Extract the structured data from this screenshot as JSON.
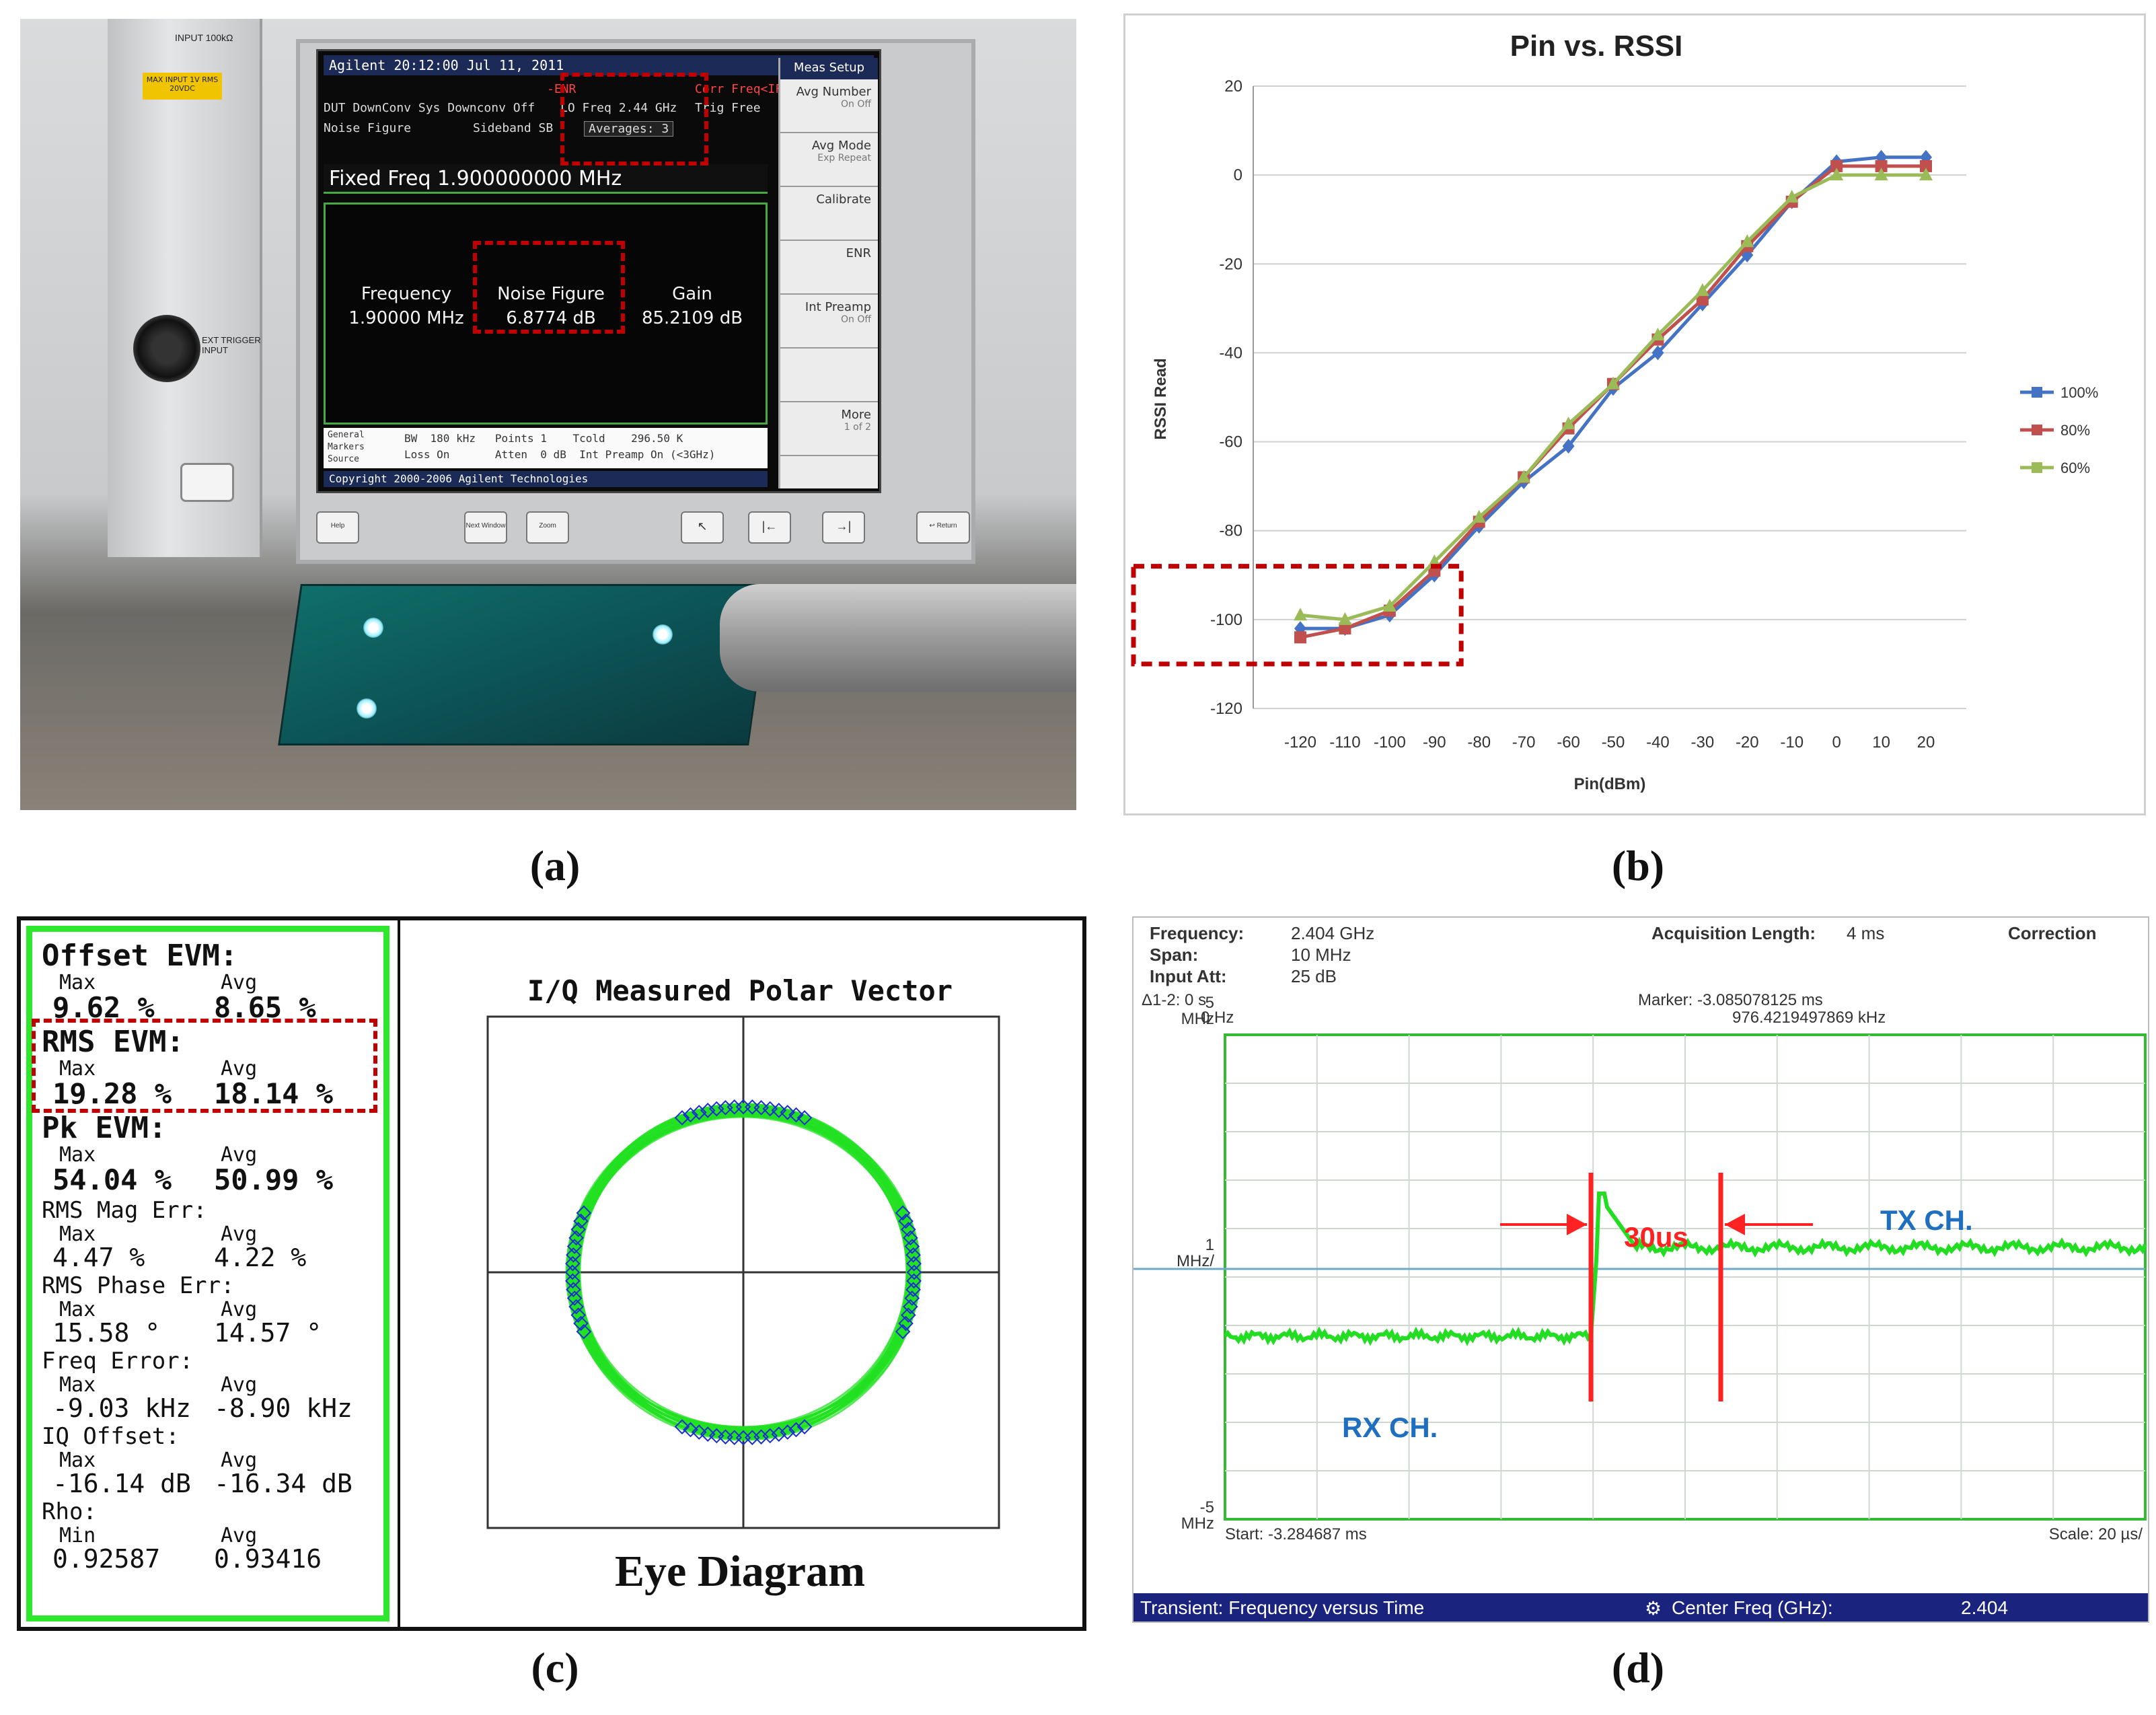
{
  "captions": {
    "a": "(a)",
    "b": "(b)",
    "c": "(c)",
    "d": "(d)"
  },
  "panel_a": {
    "instrument_warning": "MAX INPUT 1V RMS 20VDC",
    "input_label": "INPUT 100kΩ",
    "ext_trigger": "EXT TRIGGER INPUT",
    "screen_header": "Agilent 20:12:00  Jul 11, 2011",
    "corr_label": "Corr  Freq<IF DC",
    "enr_label": "-ENR",
    "dut_line": "DUT  DownConv  Sys Downconv  Off",
    "lo_freq": "LO Freq  2.44 GHz",
    "trig": "Trig  Free",
    "nf_line": "Noise Figure",
    "sideband": "Sideband  SB",
    "averages": "Averages: 3",
    "fixed_freq": "Fixed Freq 1.900000000 MHz",
    "meas": [
      {
        "label": "Frequency",
        "value": "1.90000 MHz"
      },
      {
        "label": "Noise Figure",
        "value": "6.8774 dB"
      },
      {
        "label": "Gain",
        "value": "85.2109 dB"
      }
    ],
    "bottom_tabs": [
      "General",
      "Markers",
      "Source"
    ],
    "bottom_line1": "BW  180 kHz   Points 1    Tcold    296.50 K",
    "bottom_line2": "Loss On       Atten  0 dB  Int Preamp On (<3GHz)",
    "copyright": "Copyright 2000-2006 Agilent Technologies",
    "softkey_header": "Meas Setup",
    "softkeys": [
      {
        "label": "Avg Number",
        "sub": "On    Off"
      },
      {
        "label": "Avg Mode",
        "sub": "Exp   Repeat"
      },
      {
        "label": "Calibrate",
        "sub": ""
      },
      {
        "label": "ENR",
        "sub": ""
      },
      {
        "label": "Int Preamp",
        "sub": "On    Off"
      },
      {
        "label": "",
        "sub": ""
      },
      {
        "label": "More",
        "sub": "1 of 2"
      }
    ],
    "hw_keys": [
      "Help",
      "Next Window",
      "Zoom",
      "↖",
      "|←",
      "→|",
      "↩ Return"
    ]
  },
  "chart_data": {
    "type": "line",
    "title": "Pin vs. RSSI",
    "xlabel": "Pin(dBm)",
    "ylabel": "RSSI Read",
    "x": [
      -120,
      -110,
      -100,
      -90,
      -80,
      -70,
      -60,
      -50,
      -40,
      -30,
      -20,
      -10,
      0,
      10,
      20
    ],
    "xticks": [
      "-120",
      "-110",
      "-100",
      "-90",
      "-80",
      "-70",
      "-60",
      "-50",
      "-40",
      "-30",
      "-20",
      "-10",
      "0",
      "10",
      "20"
    ],
    "ylim": [
      -120,
      20
    ],
    "yticks": [
      "20",
      "0",
      "-20",
      "-40",
      "-60",
      "-80",
      "-100",
      "-120"
    ],
    "grid": true,
    "legend": "right",
    "series": [
      {
        "name": "100%",
        "color": "#4472c4",
        "marker": "diamond",
        "values": [
          -102,
          -102,
          -99,
          -90,
          -79,
          -69,
          -61,
          -48,
          -40,
          -29,
          -18,
          -6,
          3,
          4,
          4
        ]
      },
      {
        "name": "80%",
        "color": "#c0504d",
        "marker": "square",
        "values": [
          -104,
          -102,
          -98,
          -89,
          -78,
          -68,
          -57,
          -47,
          -37,
          -28,
          -16,
          -6,
          2,
          2,
          2
        ]
      },
      {
        "name": "60%",
        "color": "#9bbb59",
        "marker": "triangle",
        "values": [
          -99,
          -100,
          -97,
          -87,
          -77,
          -68,
          -56,
          -47,
          -36,
          -26,
          -15,
          -5,
          0,
          0,
          0
        ]
      }
    ],
    "highlight": "lower-left region (-120 to -85 dBm)"
  },
  "panel_c": {
    "groups": [
      {
        "title": "Offset EVM:",
        "h1": "Max",
        "h2": "Avg",
        "v1": "9.62 %",
        "v2": "8.65 %",
        "big": true
      },
      {
        "title": "RMS EVM:",
        "h1": "Max",
        "h2": "Avg",
        "v1": "19.28 %",
        "v2": "18.14 %",
        "big": true
      },
      {
        "title": "Pk EVM:",
        "h1": "Max",
        "h2": "Avg",
        "v1": "54.04 %",
        "v2": "50.99 %",
        "big": true
      },
      {
        "title": "RMS Mag Err:",
        "h1": "Max",
        "h2": "Avg",
        "v1": "4.47 %",
        "v2": "4.22 %",
        "big": false
      },
      {
        "title": "RMS Phase Err:",
        "h1": "Max",
        "h2": "Avg",
        "v1": "15.58 °",
        "v2": "14.57 °",
        "big": false
      },
      {
        "title": "Freq Error:",
        "h1": "Max",
        "h2": "Avg",
        "v1": "-9.03 kHz",
        "v2": "-8.90 kHz",
        "big": false
      },
      {
        "title": "IQ Offset:",
        "h1": "Max",
        "h2": "Avg",
        "v1": "-16.14 dB",
        "v2": "-16.34 dB",
        "big": false
      },
      {
        "title": "Rho:",
        "h1": "Min",
        "h2": "Avg",
        "v1": "0.92587",
        "v2": "0.93416",
        "big": false
      }
    ],
    "polar_title": "I/Q Measured Polar Vector",
    "eye_label": "Eye Diagram",
    "colors": {
      "trace": "#22e022",
      "points": "#1a2fd0"
    }
  },
  "panel_d": {
    "frequency_label": "Frequency:",
    "frequency": "2.404 GHz",
    "span_label": "Span:",
    "span": "10 MHz",
    "att_label": "Input Att:",
    "att": "25 dB",
    "acq_label": "Acquisition Length:",
    "acq": "4 ms",
    "correction": "Correction",
    "delta_label": "Δ1-2: 0 s",
    "delta_hz": "0 Hz",
    "marker_label": "Marker: -3.085078125 ms",
    "marker_freq": "976.4219497869 kHz",
    "y_top_val": "5",
    "y_top_unit": "MHz",
    "y_mid_val": "1",
    "y_mid_unit": "MHz/",
    "y_bot_val": "-5",
    "y_bot_unit": "MHz",
    "start": "Start: -3.284687 ms",
    "scale": "Scale: 20 µs/",
    "interval": "30us",
    "rx_label": "RX CH.",
    "tx_label": "TX CH.",
    "bar_left": "Transient: Frequency versus Time",
    "bar_center_label": "Center Freq (GHz):",
    "bar_center_value": "2.404"
  }
}
